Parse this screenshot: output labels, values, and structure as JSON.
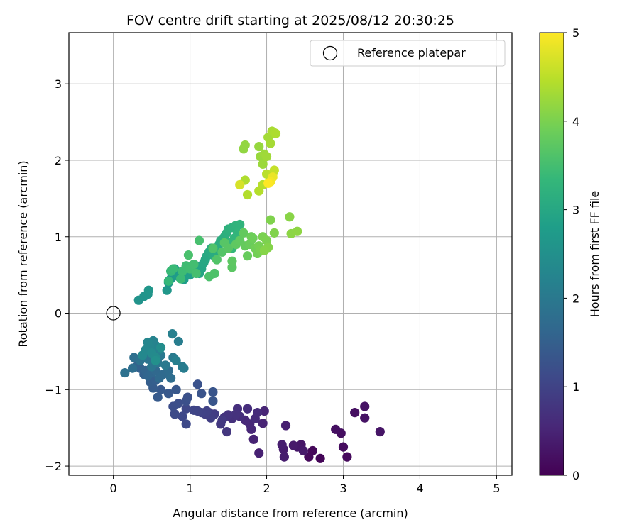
{
  "chart_data": {
    "type": "scatter",
    "title": "FOV centre drift starting at 2025/08/12 20:30:25",
    "xlabel": "Angular distance from reference (arcmin)",
    "ylabel": "Rotation from reference (arcmin)",
    "xlim": [
      -0.58,
      5.2
    ],
    "ylim": [
      -2.12,
      3.67
    ],
    "xticks": [
      0,
      1,
      2,
      3,
      4,
      5
    ],
    "yticks": [
      -2,
      -1,
      0,
      1,
      2,
      3
    ],
    "grid": true,
    "legend": {
      "placement": "top-right",
      "entries": [
        "Reference platepar"
      ]
    },
    "reference_point": {
      "name": "Reference platepar",
      "x": 0,
      "y": 0
    },
    "colorbar": {
      "label": "Hours from first FF file",
      "range": [
        0,
        5
      ],
      "ticks": [
        0,
        1,
        2,
        3,
        4,
        5
      ],
      "colormap": "viridis",
      "colors": [
        "#440154",
        "#482878",
        "#3e4989",
        "#31688e",
        "#26828e",
        "#1f9e89",
        "#35b779",
        "#6ece58",
        "#b5de2b",
        "#fde725"
      ]
    },
    "points": [
      {
        "x": 2.7,
        "y": -1.9,
        "h": 0.05
      },
      {
        "x": 2.6,
        "y": -1.8,
        "h": 0.08
      },
      {
        "x": 2.55,
        "y": -1.88,
        "h": 0.1
      },
      {
        "x": 3.05,
        "y": -1.88,
        "h": 0.12
      },
      {
        "x": 3.0,
        "y": -1.75,
        "h": 0.15
      },
      {
        "x": 2.97,
        "y": -1.57,
        "h": 0.18
      },
      {
        "x": 2.9,
        "y": -1.52,
        "h": 0.2
      },
      {
        "x": 3.15,
        "y": -1.3,
        "h": 0.22
      },
      {
        "x": 3.28,
        "y": -1.22,
        "h": 0.25
      },
      {
        "x": 3.28,
        "y": -1.37,
        "h": 0.26
      },
      {
        "x": 3.48,
        "y": -1.55,
        "h": 0.28
      },
      {
        "x": 2.45,
        "y": -1.72,
        "h": 0.3
      },
      {
        "x": 2.4,
        "y": -1.75,
        "h": 0.32
      },
      {
        "x": 2.48,
        "y": -1.8,
        "h": 0.34
      },
      {
        "x": 2.35,
        "y": -1.73,
        "h": 0.36
      },
      {
        "x": 2.22,
        "y": -1.78,
        "h": 0.38
      },
      {
        "x": 2.23,
        "y": -1.88,
        "h": 0.4
      },
      {
        "x": 2.2,
        "y": -1.72,
        "h": 0.42
      },
      {
        "x": 2.25,
        "y": -1.47,
        "h": 0.44
      },
      {
        "x": 1.9,
        "y": -1.83,
        "h": 0.46
      },
      {
        "x": 1.83,
        "y": -1.65,
        "h": 0.48
      },
      {
        "x": 1.95,
        "y": -1.44,
        "h": 0.5
      },
      {
        "x": 1.97,
        "y": -1.28,
        "h": 0.52
      },
      {
        "x": 1.8,
        "y": -1.52,
        "h": 0.54
      },
      {
        "x": 1.78,
        "y": -1.45,
        "h": 0.56
      },
      {
        "x": 1.72,
        "y": -1.4,
        "h": 0.58
      },
      {
        "x": 1.85,
        "y": -1.38,
        "h": 0.6
      },
      {
        "x": 1.88,
        "y": -1.3,
        "h": 0.62
      },
      {
        "x": 1.75,
        "y": -1.25,
        "h": 0.64
      },
      {
        "x": 1.65,
        "y": -1.35,
        "h": 0.66
      },
      {
        "x": 1.62,
        "y": -1.25,
        "h": 0.68
      },
      {
        "x": 1.55,
        "y": -1.38,
        "h": 0.7
      },
      {
        "x": 1.6,
        "y": -1.32,
        "h": 0.72
      },
      {
        "x": 1.5,
        "y": -1.33,
        "h": 0.74
      },
      {
        "x": 1.45,
        "y": -1.36,
        "h": 0.76
      },
      {
        "x": 1.48,
        "y": -1.55,
        "h": 0.8
      },
      {
        "x": 1.4,
        "y": -1.45,
        "h": 0.82
      },
      {
        "x": 1.42,
        "y": -1.4,
        "h": 0.85
      },
      {
        "x": 1.25,
        "y": -1.3,
        "h": 0.88
      },
      {
        "x": 1.32,
        "y": -1.32,
        "h": 0.9
      },
      {
        "x": 1.27,
        "y": -1.37,
        "h": 0.92
      },
      {
        "x": 1.2,
        "y": -1.32,
        "h": 0.95
      },
      {
        "x": 1.22,
        "y": -1.28,
        "h": 0.98
      },
      {
        "x": 1.15,
        "y": -1.3,
        "h": 1.0
      },
      {
        "x": 1.1,
        "y": -1.28,
        "h": 1.02
      },
      {
        "x": 1.05,
        "y": -1.27,
        "h": 1.05
      },
      {
        "x": 0.95,
        "y": -1.25,
        "h": 1.08
      },
      {
        "x": 0.9,
        "y": -1.35,
        "h": 1.1
      },
      {
        "x": 0.95,
        "y": -1.45,
        "h": 1.12
      },
      {
        "x": 0.8,
        "y": -1.32,
        "h": 1.15
      },
      {
        "x": 0.78,
        "y": -1.22,
        "h": 1.18
      },
      {
        "x": 0.85,
        "y": -1.18,
        "h": 1.2
      },
      {
        "x": 0.95,
        "y": -1.15,
        "h": 1.22
      },
      {
        "x": 0.97,
        "y": -1.1,
        "h": 1.25
      },
      {
        "x": 1.1,
        "y": -0.93,
        "h": 1.28
      },
      {
        "x": 1.15,
        "y": -1.05,
        "h": 1.3
      },
      {
        "x": 1.3,
        "y": -1.03,
        "h": 1.32
      },
      {
        "x": 1.3,
        "y": -1.15,
        "h": 1.34
      },
      {
        "x": 0.82,
        "y": -1.0,
        "h": 1.36
      },
      {
        "x": 0.72,
        "y": -1.05,
        "h": 1.38
      },
      {
        "x": 0.62,
        "y": -1.0,
        "h": 1.4
      },
      {
        "x": 0.58,
        "y": -1.1,
        "h": 1.42
      },
      {
        "x": 0.52,
        "y": -0.98,
        "h": 1.45
      },
      {
        "x": 0.48,
        "y": -0.9,
        "h": 1.48
      },
      {
        "x": 0.55,
        "y": -0.88,
        "h": 1.5
      },
      {
        "x": 0.4,
        "y": -0.8,
        "h": 1.52
      },
      {
        "x": 0.35,
        "y": -0.72,
        "h": 1.55
      },
      {
        "x": 0.3,
        "y": -0.7,
        "h": 1.58
      },
      {
        "x": 0.42,
        "y": -0.75,
        "h": 1.6
      },
      {
        "x": 0.45,
        "y": -0.82,
        "h": 1.62
      },
      {
        "x": 0.5,
        "y": -0.78,
        "h": 1.65
      },
      {
        "x": 0.55,
        "y": -0.75,
        "h": 1.68
      },
      {
        "x": 0.6,
        "y": -0.85,
        "h": 1.7
      },
      {
        "x": 0.65,
        "y": -0.8,
        "h": 1.72
      },
      {
        "x": 0.72,
        "y": -0.75,
        "h": 1.75
      },
      {
        "x": 0.75,
        "y": -0.85,
        "h": 1.78
      },
      {
        "x": 0.25,
        "y": -0.72,
        "h": 1.8
      },
      {
        "x": 0.27,
        "y": -0.58,
        "h": 1.82
      },
      {
        "x": 0.15,
        "y": -0.78,
        "h": 1.85
      },
      {
        "x": 0.35,
        "y": -0.62,
        "h": 1.88
      },
      {
        "x": 0.4,
        "y": -0.55,
        "h": 1.9
      },
      {
        "x": 0.45,
        "y": -0.6,
        "h": 1.92
      },
      {
        "x": 0.5,
        "y": -0.7,
        "h": 1.95
      },
      {
        "x": 0.58,
        "y": -0.65,
        "h": 1.98
      },
      {
        "x": 0.62,
        "y": -0.55,
        "h": 2.0
      },
      {
        "x": 0.68,
        "y": -0.68,
        "h": 2.02
      },
      {
        "x": 0.78,
        "y": -0.58,
        "h": 2.05
      },
      {
        "x": 0.9,
        "y": -0.7,
        "h": 2.08
      },
      {
        "x": 0.92,
        "y": -0.72,
        "h": 2.1
      },
      {
        "x": 0.85,
        "y": -0.37,
        "h": 2.12
      },
      {
        "x": 0.82,
        "y": -0.62,
        "h": 2.15
      },
      {
        "x": 0.77,
        "y": -0.27,
        "h": 2.18
      },
      {
        "x": 0.6,
        "y": -0.48,
        "h": 2.2
      },
      {
        "x": 0.55,
        "y": -0.42,
        "h": 2.22
      },
      {
        "x": 0.52,
        "y": -0.36,
        "h": 2.25
      },
      {
        "x": 0.48,
        "y": -0.45,
        "h": 2.28
      },
      {
        "x": 0.45,
        "y": -0.38,
        "h": 2.3
      },
      {
        "x": 0.42,
        "y": -0.48,
        "h": 2.32
      },
      {
        "x": 0.38,
        "y": -0.55,
        "h": 2.35
      },
      {
        "x": 0.5,
        "y": -0.52,
        "h": 2.38
      },
      {
        "x": 0.55,
        "y": -0.58,
        "h": 2.4
      },
      {
        "x": 0.62,
        "y": -0.45,
        "h": 2.45
      },
      {
        "x": 0.55,
        "y": -0.62,
        "h": 2.5
      },
      {
        "x": 0.33,
        "y": 0.17,
        "h": 2.55
      },
      {
        "x": 0.4,
        "y": 0.22,
        "h": 2.58
      },
      {
        "x": 0.45,
        "y": 0.25,
        "h": 2.6
      },
      {
        "x": 0.46,
        "y": 0.3,
        "h": 2.62
      },
      {
        "x": 0.7,
        "y": 0.3,
        "h": 2.64
      },
      {
        "x": 0.72,
        "y": 0.4,
        "h": 2.66
      },
      {
        "x": 0.75,
        "y": 0.45,
        "h": 2.68
      },
      {
        "x": 0.78,
        "y": 0.5,
        "h": 2.7
      },
      {
        "x": 0.8,
        "y": 0.58,
        "h": 2.72
      },
      {
        "x": 0.85,
        "y": 0.48,
        "h": 2.74
      },
      {
        "x": 0.9,
        "y": 0.52,
        "h": 2.76
      },
      {
        "x": 0.92,
        "y": 0.44,
        "h": 2.78
      },
      {
        "x": 0.95,
        "y": 0.55,
        "h": 2.8
      },
      {
        "x": 1.0,
        "y": 0.5,
        "h": 2.82
      },
      {
        "x": 1.02,
        "y": 0.58,
        "h": 2.84
      },
      {
        "x": 1.05,
        "y": 0.55,
        "h": 2.86
      },
      {
        "x": 1.08,
        "y": 0.62,
        "h": 2.88
      },
      {
        "x": 1.1,
        "y": 0.6,
        "h": 2.9
      },
      {
        "x": 1.12,
        "y": 0.52,
        "h": 2.92
      },
      {
        "x": 1.15,
        "y": 0.58,
        "h": 2.94
      },
      {
        "x": 1.18,
        "y": 0.66,
        "h": 2.96
      },
      {
        "x": 1.2,
        "y": 0.7,
        "h": 2.98
      },
      {
        "x": 1.22,
        "y": 0.75,
        "h": 3.0
      },
      {
        "x": 1.25,
        "y": 0.8,
        "h": 3.02
      },
      {
        "x": 1.28,
        "y": 0.85,
        "h": 3.04
      },
      {
        "x": 1.3,
        "y": 0.76,
        "h": 3.06
      },
      {
        "x": 1.35,
        "y": 0.82,
        "h": 3.08
      },
      {
        "x": 1.38,
        "y": 0.9,
        "h": 3.1
      },
      {
        "x": 1.4,
        "y": 0.95,
        "h": 3.12
      },
      {
        "x": 1.45,
        "y": 1.0,
        "h": 3.14
      },
      {
        "x": 1.48,
        "y": 1.05,
        "h": 3.16
      },
      {
        "x": 1.5,
        "y": 1.1,
        "h": 3.18
      },
      {
        "x": 1.55,
        "y": 1.12,
        "h": 3.2
      },
      {
        "x": 1.6,
        "y": 1.15,
        "h": 3.22
      },
      {
        "x": 1.65,
        "y": 1.16,
        "h": 3.24
      },
      {
        "x": 1.62,
        "y": 1.05,
        "h": 3.26
      },
      {
        "x": 1.58,
        "y": 0.98,
        "h": 3.28
      },
      {
        "x": 1.52,
        "y": 0.92,
        "h": 3.3
      },
      {
        "x": 1.55,
        "y": 0.85,
        "h": 3.32
      },
      {
        "x": 0.72,
        "y": 0.42,
        "h": 3.34
      },
      {
        "x": 0.75,
        "y": 0.55,
        "h": 3.36
      },
      {
        "x": 0.78,
        "y": 0.58,
        "h": 3.38
      },
      {
        "x": 0.88,
        "y": 0.45,
        "h": 3.4
      },
      {
        "x": 0.9,
        "y": 0.55,
        "h": 3.42
      },
      {
        "x": 0.95,
        "y": 0.62,
        "h": 3.44
      },
      {
        "x": 1.0,
        "y": 0.58,
        "h": 3.46
      },
      {
        "x": 1.05,
        "y": 0.64,
        "h": 3.48
      },
      {
        "x": 1.08,
        "y": 0.52,
        "h": 3.5
      },
      {
        "x": 1.12,
        "y": 0.95,
        "h": 3.52
      },
      {
        "x": 0.98,
        "y": 0.76,
        "h": 3.54
      },
      {
        "x": 1.25,
        "y": 0.48,
        "h": 3.56
      },
      {
        "x": 1.32,
        "y": 0.52,
        "h": 3.58
      },
      {
        "x": 1.3,
        "y": 0.85,
        "h": 3.6
      },
      {
        "x": 1.35,
        "y": 0.7,
        "h": 3.62
      },
      {
        "x": 1.42,
        "y": 0.8,
        "h": 3.64
      },
      {
        "x": 1.45,
        "y": 0.92,
        "h": 3.66
      },
      {
        "x": 1.5,
        "y": 0.85,
        "h": 3.68
      },
      {
        "x": 1.55,
        "y": 0.6,
        "h": 3.7
      },
      {
        "x": 1.55,
        "y": 0.68,
        "h": 3.72
      },
      {
        "x": 1.6,
        "y": 0.9,
        "h": 3.74
      },
      {
        "x": 1.65,
        "y": 0.95,
        "h": 3.76
      },
      {
        "x": 1.7,
        "y": 1.05,
        "h": 3.78
      },
      {
        "x": 1.72,
        "y": 0.88,
        "h": 3.8
      },
      {
        "x": 1.75,
        "y": 0.75,
        "h": 3.82
      },
      {
        "x": 1.78,
        "y": 0.9,
        "h": 3.84
      },
      {
        "x": 1.8,
        "y": 1.0,
        "h": 3.86
      },
      {
        "x": 1.82,
        "y": 0.98,
        "h": 3.88
      },
      {
        "x": 1.85,
        "y": 0.85,
        "h": 3.9
      },
      {
        "x": 1.88,
        "y": 0.78,
        "h": 3.92
      },
      {
        "x": 1.9,
        "y": 0.88,
        "h": 3.94
      },
      {
        "x": 1.92,
        "y": 0.82,
        "h": 3.96
      },
      {
        "x": 1.95,
        "y": 1.0,
        "h": 3.98
      },
      {
        "x": 2.0,
        "y": 0.95,
        "h": 4.0
      },
      {
        "x": 2.05,
        "y": 1.22,
        "h": 4.02
      },
      {
        "x": 2.1,
        "y": 1.05,
        "h": 4.04
      },
      {
        "x": 2.02,
        "y": 0.86,
        "h": 4.06
      },
      {
        "x": 1.97,
        "y": 0.82,
        "h": 4.08
      },
      {
        "x": 2.3,
        "y": 1.26,
        "h": 4.1
      },
      {
        "x": 2.32,
        "y": 1.04,
        "h": 4.12
      },
      {
        "x": 2.4,
        "y": 1.07,
        "h": 4.14
      },
      {
        "x": 1.7,
        "y": 2.15,
        "h": 4.16
      },
      {
        "x": 1.72,
        "y": 2.2,
        "h": 4.18
      },
      {
        "x": 1.9,
        "y": 2.18,
        "h": 4.2
      },
      {
        "x": 1.92,
        "y": 2.05,
        "h": 4.22
      },
      {
        "x": 1.95,
        "y": 1.95,
        "h": 4.24
      },
      {
        "x": 1.97,
        "y": 2.08,
        "h": 4.26
      },
      {
        "x": 2.0,
        "y": 2.05,
        "h": 4.28
      },
      {
        "x": 2.02,
        "y": 2.3,
        "h": 4.3
      },
      {
        "x": 2.05,
        "y": 2.22,
        "h": 4.32
      },
      {
        "x": 2.07,
        "y": 2.38,
        "h": 4.34
      },
      {
        "x": 2.1,
        "y": 2.36,
        "h": 4.36
      },
      {
        "x": 2.12,
        "y": 2.35,
        "h": 4.38
      },
      {
        "x": 1.72,
        "y": 1.74,
        "h": 4.4
      },
      {
        "x": 1.75,
        "y": 1.55,
        "h": 4.42
      },
      {
        "x": 1.9,
        "y": 1.6,
        "h": 4.44
      },
      {
        "x": 1.95,
        "y": 1.68,
        "h": 4.46
      },
      {
        "x": 2.0,
        "y": 1.82,
        "h": 4.48
      },
      {
        "x": 2.05,
        "y": 1.75,
        "h": 4.5
      },
      {
        "x": 2.08,
        "y": 1.82,
        "h": 4.52
      },
      {
        "x": 2.1,
        "y": 1.87,
        "h": 4.56
      },
      {
        "x": 1.65,
        "y": 1.68,
        "h": 4.7
      },
      {
        "x": 2.08,
        "y": 1.78,
        "h": 4.85
      },
      {
        "x": 2.05,
        "y": 1.72,
        "h": 4.92
      },
      {
        "x": 2.02,
        "y": 1.7,
        "h": 5.0
      }
    ]
  }
}
